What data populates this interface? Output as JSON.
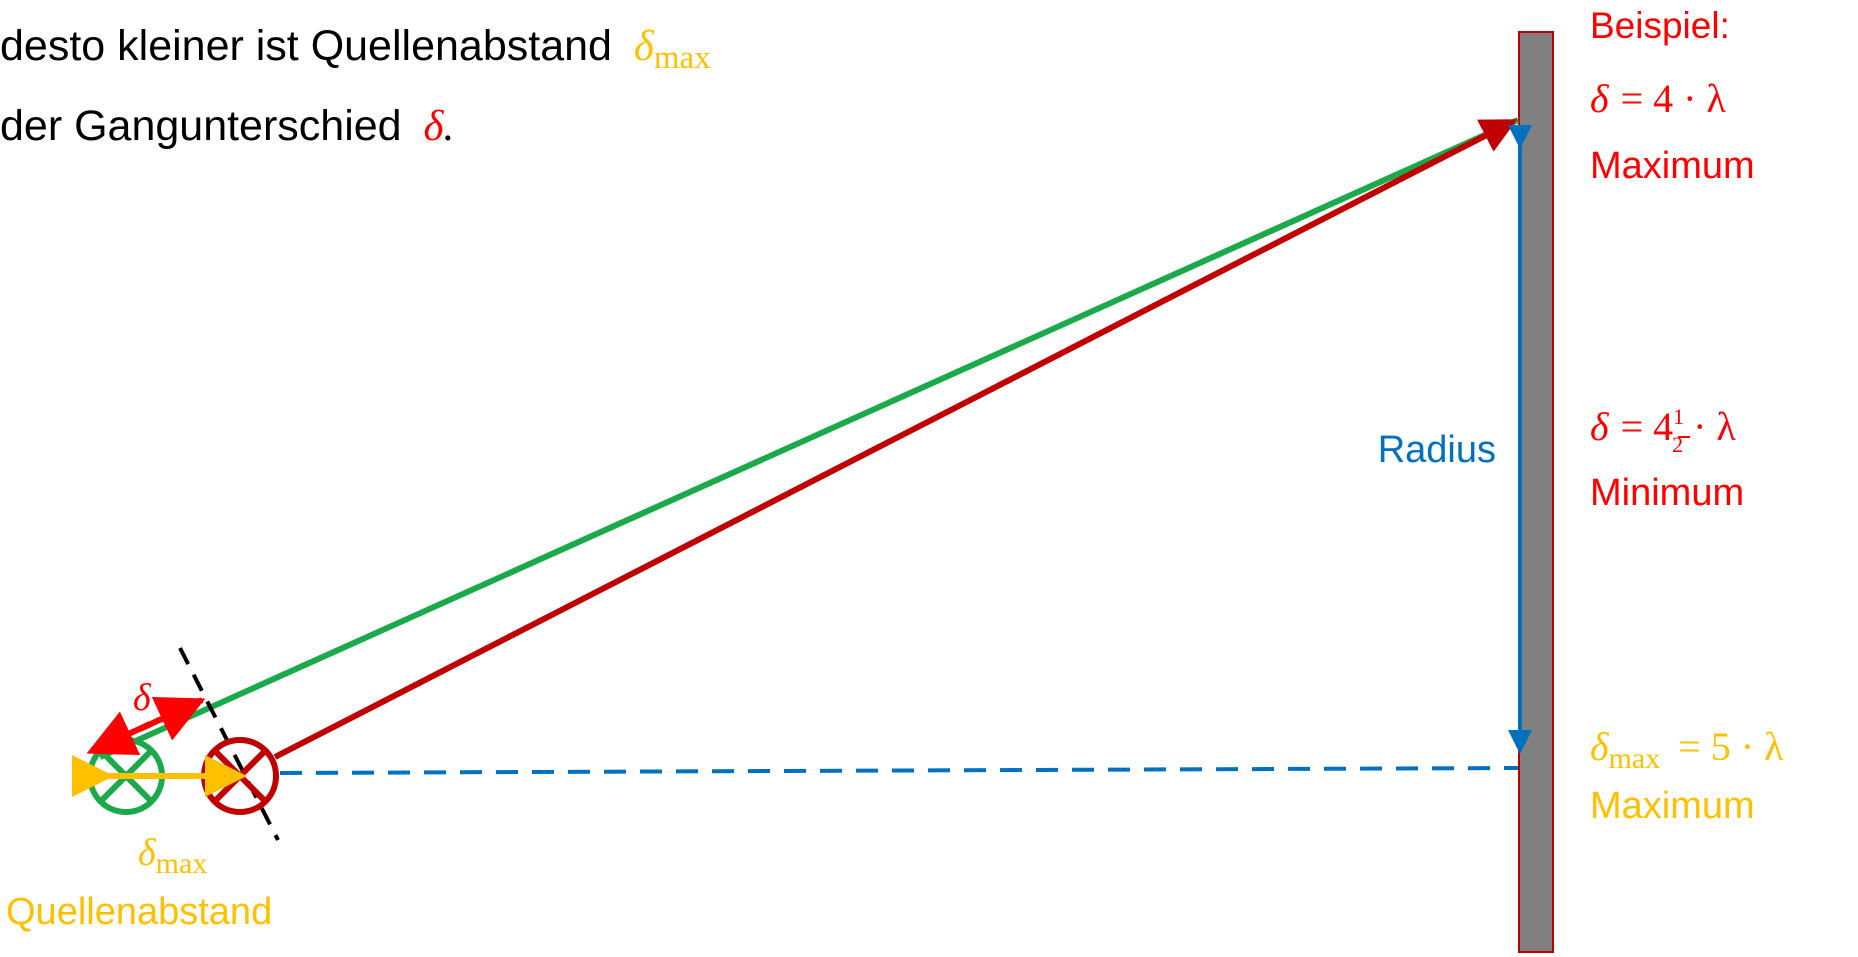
{
  "intro": {
    "line1_text": "desto kleiner ist Quellenabstand",
    "line1_delta": "δ",
    "line1_sub": "max",
    "line2_text": "der Gangunterschied",
    "line2_delta": "δ",
    "line2_period": "."
  },
  "diagram": {
    "delta_label": "δ",
    "delta_max_label": "δ",
    "delta_max_sub": "max",
    "source_label": "Quellenabstand",
    "radius_label": "Radius"
  },
  "example": {
    "title": "Beispiel:",
    "cases": [
      {
        "delta": "δ",
        "rhs": "= 4 · λ",
        "type": "Maximum"
      },
      {
        "delta": "δ",
        "rhs_prefix": "= 4",
        "frac_num": "1",
        "frac_den": "2",
        "rhs_suffix": " · λ",
        "type": "Minimum"
      },
      {
        "delta": "δ",
        "delta_sub": "max",
        "rhs": "= 5 · λ",
        "type": "Maximum"
      }
    ]
  },
  "colors": {
    "green": "#1aaa4a",
    "dark_red": "#c00000",
    "bright_red": "#ff0000",
    "yellow": "#ffc000",
    "blue": "#0070c0",
    "screen_fill": "#808080",
    "screen_border": "#c00000"
  }
}
